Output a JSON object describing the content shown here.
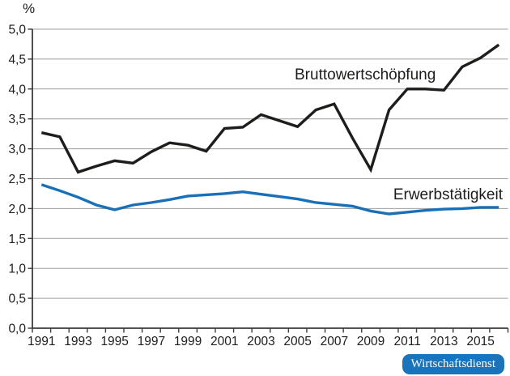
{
  "figure": {
    "unit_label": "%",
    "source_badge": "Wirtschaftsdienst",
    "colors": {
      "line_bruttowertschoepfung": "#1d1d1b",
      "line_erwerbstaetigkeit": "#1a70b8",
      "gridline": "#9d9d9c",
      "axis": "#3c3c3b",
      "tick": "#3c3c3b",
      "label_text": "#1d1d1b",
      "badge_background": "#1b73b9",
      "badge_text": "#ffffff"
    }
  },
  "chart_data": {
    "type": "line",
    "title": "",
    "xlabel": "",
    "ylabel": "%",
    "ylim": [
      0,
      5
    ],
    "y_tick_step": 0.5,
    "y_tick_labels": [
      "0,0",
      "0,5",
      "1,0",
      "1,5",
      "2,0",
      "2,5",
      "3,0",
      "3,5",
      "4,0",
      "4,5",
      "5,0"
    ],
    "x": [
      1991,
      1992,
      1993,
      1994,
      1995,
      1996,
      1997,
      1998,
      1999,
      2000,
      2001,
      2002,
      2003,
      2004,
      2005,
      2006,
      2007,
      2008,
      2009,
      2010,
      2011,
      2012,
      2013,
      2014,
      2015,
      2016
    ],
    "x_tick_labels": [
      "1991",
      "1993",
      "1995",
      "1997",
      "1999",
      "2001",
      "2003",
      "2005",
      "2007",
      "2009",
      "2011",
      "2013",
      "2015"
    ],
    "grid": "horizontal",
    "legend_position": "inline-annotations",
    "series": [
      {
        "name": "Bruttowertschöpfung",
        "color": "#1d1d1b",
        "values": [
          3.27,
          3.2,
          2.61,
          2.71,
          2.8,
          2.76,
          2.95,
          3.1,
          3.06,
          2.96,
          3.34,
          3.36,
          3.57,
          3.47,
          3.37,
          3.65,
          3.75,
          3.18,
          2.65,
          3.65,
          4.0,
          4.0,
          3.98,
          4.37,
          4.52,
          4.74
        ]
      },
      {
        "name": "Erwerbstätigkeit",
        "color": "#1a70b8",
        "values": [
          2.4,
          2.3,
          2.19,
          2.06,
          1.98,
          2.06,
          2.1,
          2.15,
          2.21,
          2.23,
          2.25,
          2.28,
          2.24,
          2.2,
          2.16,
          2.1,
          2.07,
          2.04,
          1.96,
          1.91,
          1.94,
          1.97,
          1.99,
          2.0,
          2.02,
          2.02
        ]
      }
    ],
    "annotations": [
      {
        "text": "Bruttowertschöpfung",
        "refers_to": "series 0",
        "position": "above black line, center-right"
      },
      {
        "text": "Erwerbstätigkeit",
        "refers_to": "series 1",
        "position": "above blue line, right edge"
      }
    ]
  }
}
